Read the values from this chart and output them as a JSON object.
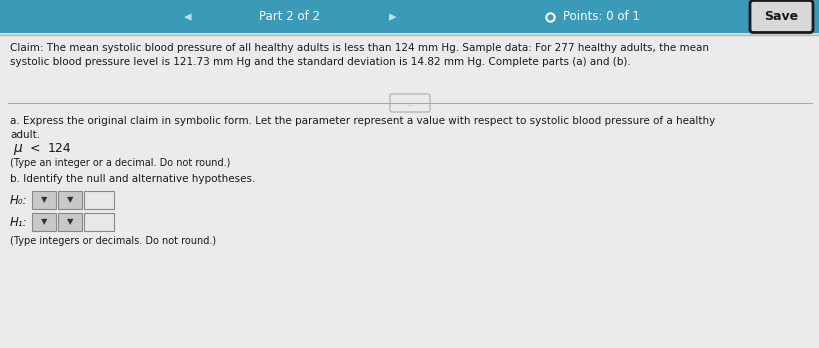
{
  "header_bg": "#3a9ab8",
  "header_text_color": "#ffffff",
  "header_part": "Part 2 of 2",
  "header_points": "Points: 0 of 1",
  "save_button_text": "Save",
  "claim_text": "Claim: The mean systolic blood pressure of all healthy adults is less than 124 mm Hg. Sample data: For 277 healthy adults, the mean\nsystolic blood pressure level is 121.73 mm Hg and the standard deviation is 14.82 mm Hg. Complete parts (a) and (b).",
  "part_a_label": "a. Express the original claim in symbolic form. Let the parameter represent a value with respect to systolic blood pressure of a healthy\nadult.",
  "type_note_a": "(Type an integer or a decimal. Do not round.)",
  "part_b_label": "b. Identify the null and alternative hypotheses.",
  "H0_label": "H₀:",
  "H1_label": "H₁:",
  "type_note_b": "(Type integers or decimals. Do not round.)",
  "ellipsis_text": "…",
  "body_bg": "#d8d8d8",
  "content_bg": "#ebebeb",
  "text_color": "#1a1a1a",
  "font_size_header": 8.5,
  "font_size_body": 7.5,
  "font_size_mu": 10
}
